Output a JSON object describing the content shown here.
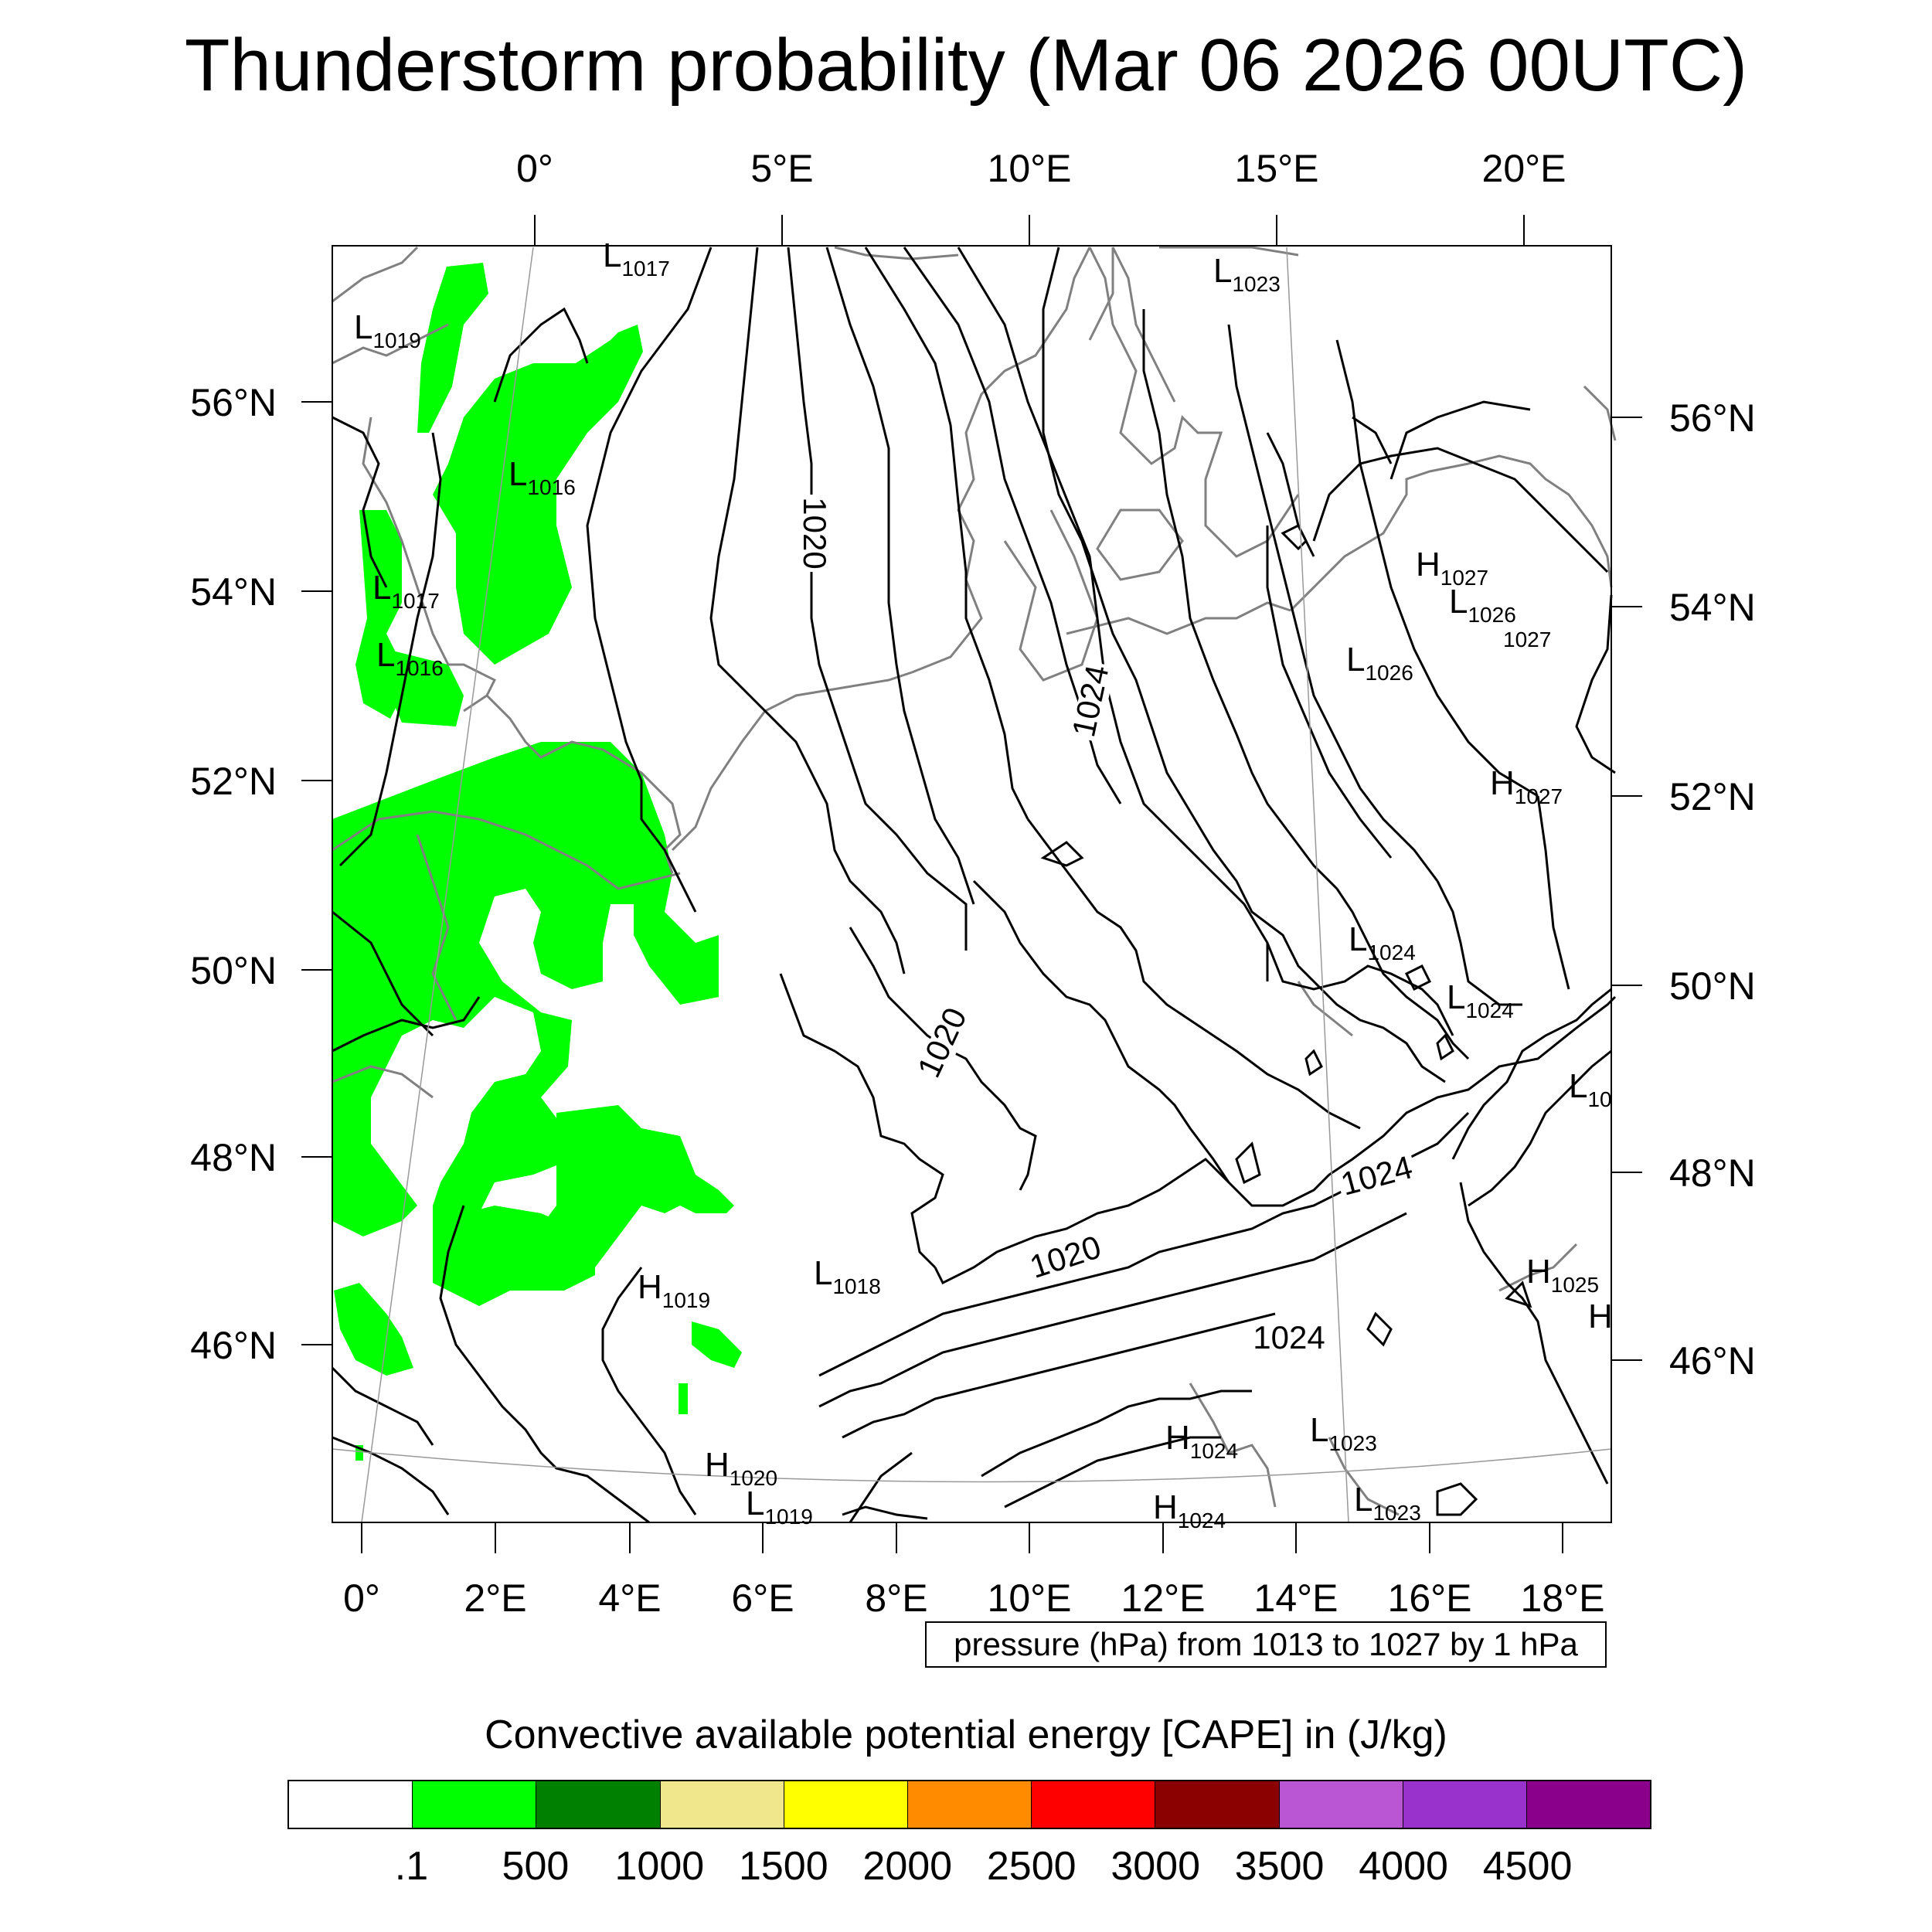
{
  "title": "Thunderstorm probability (Mar 06 2026 00UTC)",
  "top_lon_labels": [
    "0°",
    "5°E",
    "10°E",
    "15°E",
    "20°E"
  ],
  "left_lat_labels": [
    "56°N",
    "54°N",
    "52°N",
    "50°N",
    "48°N",
    "46°N"
  ],
  "right_lat_labels": [
    "56°N",
    "54°N",
    "52°N",
    "50°N",
    "48°N",
    "46°N"
  ],
  "bottom_lon_labels": [
    "0°",
    "2°E",
    "4°E",
    "6°E",
    "8°E",
    "10°E",
    "12°E",
    "14°E",
    "16°E",
    "18°E"
  ],
  "pressure_note": "pressure (hPa) from 1013 to 1027 by 1 hPa",
  "colorbar_title": "Convective available potential energy [CAPE] in (J/kg)",
  "colorbar": {
    "colors": [
      "#ffffff",
      "#00ff00",
      "#008000",
      "#f0e68c",
      "#ffff00",
      "#ff8c00",
      "#ff0000",
      "#8b0000",
      "#ba55d3",
      "#9932cc",
      "#8b008b"
    ],
    "labels": [
      ".1",
      "500",
      "1000",
      "1500",
      "2000",
      "2500",
      "3000",
      "3500",
      "4000",
      "4500"
    ]
  },
  "colors": {
    "cape_low": "#00ff00",
    "isobar": "#000000",
    "coast": "#808080"
  },
  "pressure_centers": [
    {
      "type": "L",
      "value": "1017"
    },
    {
      "type": "L",
      "value": "1019"
    },
    {
      "type": "L",
      "value": "1016"
    },
    {
      "type": "L",
      "value": "1017"
    },
    {
      "type": "L",
      "value": "1016"
    },
    {
      "type": "L",
      "value": "1023"
    },
    {
      "type": "H",
      "value": "1027"
    },
    {
      "type": "L",
      "value": "1026"
    },
    {
      "type": "",
      "value": "1027"
    },
    {
      "type": "L",
      "value": "1026"
    },
    {
      "type": "H",
      "value": "1027"
    },
    {
      "type": "L",
      "value": "1024"
    },
    {
      "type": "L",
      "value": "1024"
    },
    {
      "type": "L",
      "value": "10"
    },
    {
      "type": "H",
      "value": "1025"
    },
    {
      "type": "H",
      "value": ""
    },
    {
      "type": "H",
      "value": "1019"
    },
    {
      "type": "L",
      "value": "1018"
    },
    {
      "type": "H",
      "value": "1024"
    },
    {
      "type": "L",
      "value": "1023"
    },
    {
      "type": "H",
      "value": "1020"
    },
    {
      "type": "L",
      "value": "1019"
    },
    {
      "type": "H",
      "value": "1024"
    },
    {
      "type": "L",
      "value": "1023"
    }
  ],
  "contour_labels": [
    "1020",
    "1024",
    "1020",
    "1024",
    "1020",
    "1024"
  ]
}
